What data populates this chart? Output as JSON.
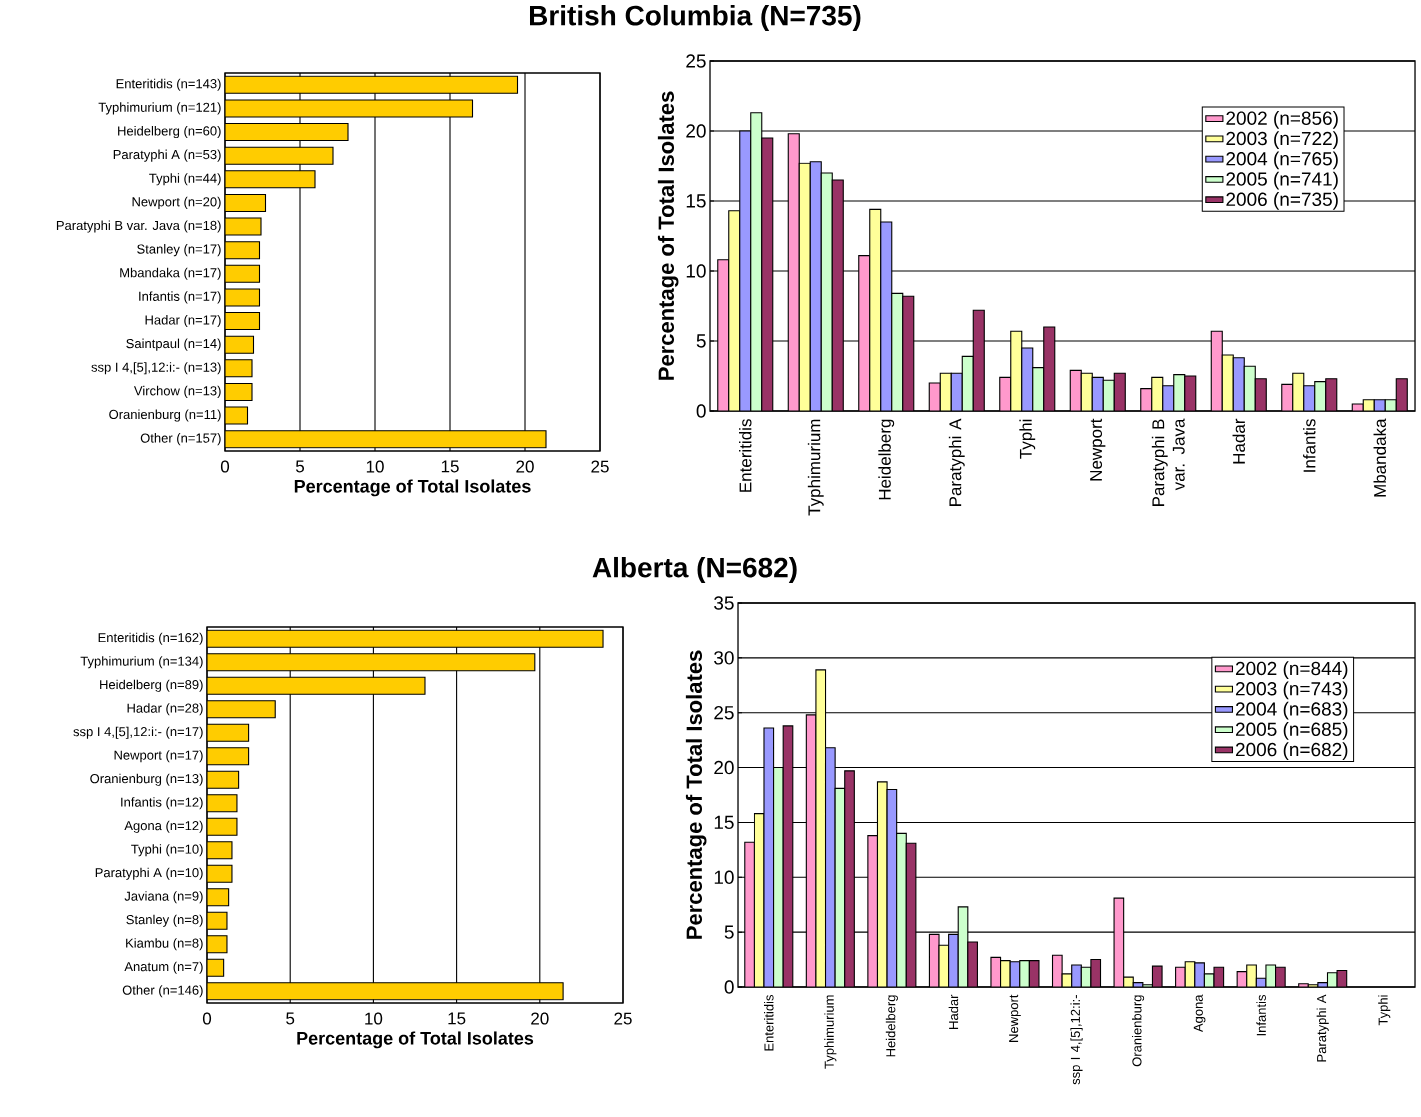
{
  "chart_data": [
    {
      "type": "bar",
      "orientation": "horizontal",
      "title": "British Columbia (N=735)",
      "xlabel": "Percentage of Total Isolates",
      "categories": [
        "Enteritidis (n=143)",
        "Typhimurium (n=121)",
        "Heidelberg (n=60)",
        "Paratyphi A (n=53)",
        "Typhi (n=44)",
        "Newport (n=20)",
        "Paratyphi B var. Java (n=18)",
        "Stanley (n=17)",
        "Mbandaka (n=17)",
        "Infantis (n=17)",
        "Hadar (n=17)",
        "Saintpaul (n=14)",
        "ssp I 4,[5],12:i:- (n=13)",
        "Virchow (n=13)",
        "Oranienburg (n=11)",
        "Other (n=157)"
      ],
      "values": [
        19.5,
        16.5,
        8.2,
        7.2,
        6.0,
        2.7,
        2.4,
        2.3,
        2.3,
        2.3,
        2.3,
        1.9,
        1.8,
        1.8,
        1.5,
        21.4
      ],
      "color": "#ffcc00",
      "xlim": [
        0,
        25
      ],
      "xticks": [
        0,
        5,
        10,
        15,
        20,
        25
      ],
      "grid": "x"
    },
    {
      "type": "bar",
      "ylabel": "Percentage of Total Isolates",
      "categories": [
        "Enteritidis",
        "Typhimurium",
        "Heidelberg",
        "Paratyphi A",
        "Typhi",
        "Newport",
        "Paratyphi B var. Java",
        "Hadar",
        "Infantis",
        "Mbandaka"
      ],
      "series": [
        {
          "name": "2002 (n=856)",
          "color": "#ff99cc",
          "values": [
            10.8,
            19.8,
            11.1,
            2.0,
            2.4,
            2.9,
            1.6,
            5.7,
            1.9,
            0.5
          ]
        },
        {
          "name": "2003 (n=722)",
          "color": "#ffff99",
          "values": [
            14.3,
            17.7,
            14.4,
            2.7,
            5.7,
            2.7,
            2.4,
            4.0,
            2.7,
            0.8
          ]
        },
        {
          "name": "2004 (n=765)",
          "color": "#9999ff",
          "values": [
            20.0,
            17.8,
            13.5,
            2.7,
            4.5,
            2.4,
            1.8,
            3.8,
            1.8,
            0.8
          ]
        },
        {
          "name": "2005 (n=741)",
          "color": "#ccffcc",
          "values": [
            21.3,
            17.0,
            8.4,
            3.9,
            3.1,
            2.2,
            2.6,
            3.2,
            2.1,
            0.8
          ]
        },
        {
          "name": "2006 (n=735)",
          "color": "#993366",
          "values": [
            19.5,
            16.5,
            8.2,
            7.2,
            6.0,
            2.7,
            2.5,
            2.3,
            2.3,
            2.3
          ]
        }
      ],
      "ylim": [
        0,
        25
      ],
      "yticks": [
        0,
        5,
        10,
        15,
        20,
        25
      ],
      "grid": "y",
      "legend": "top right"
    },
    {
      "type": "bar",
      "orientation": "horizontal",
      "title": "Alberta (N=682)",
      "xlabel": "Percentage of Total Isolates",
      "categories": [
        "Enteritidis (n=162)",
        "Typhimurium (n=134)",
        "Heidelberg (n=89)",
        "Hadar (n=28)",
        "ssp I 4,[5],12:i:- (n=17)",
        "Newport (n=17)",
        "Oranienburg (n=13)",
        "Infantis (n=12)",
        "Agona (n=12)",
        "Typhi (n=10)",
        "Paratyphi A (n=10)",
        "Javiana (n=9)",
        "Stanley (n=8)",
        "Kiambu (n=8)",
        "Anatum (n=7)",
        "Other  (n=146)"
      ],
      "values": [
        23.8,
        19.7,
        13.1,
        4.1,
        2.5,
        2.5,
        1.9,
        1.8,
        1.8,
        1.5,
        1.5,
        1.3,
        1.2,
        1.2,
        1.0,
        21.4
      ],
      "color": "#ffcc00",
      "xlim": [
        0,
        25
      ],
      "xticks": [
        0,
        5,
        10,
        15,
        20,
        25
      ],
      "grid": "x"
    },
    {
      "type": "bar",
      "ylabel": "Percentage of Total Isolates",
      "categories": [
        "Enteritidis",
        "Typhimurium",
        "Heidelberg",
        "Hadar",
        "Newport",
        "ssp I 4,[5],12:i:-",
        "Oranienburg",
        "Agona",
        "Infantis",
        "Paratyphi A",
        "Typhi"
      ],
      "series": [
        {
          "name": "2002 (n=844)",
          "color": "#ff99cc",
          "values": [
            13.2,
            24.8,
            13.8,
            4.8,
            2.7,
            2.9,
            8.1,
            1.8,
            1.4,
            0.3,
            null
          ]
        },
        {
          "name": "2003 (n=743)",
          "color": "#ffff99",
          "values": [
            15.8,
            28.9,
            18.7,
            3.8,
            2.4,
            1.2,
            0.9,
            2.3,
            2.0,
            0.2,
            null
          ]
        },
        {
          "name": "2004 (n=683)",
          "color": "#9999ff",
          "values": [
            23.6,
            21.8,
            18.0,
            4.8,
            2.3,
            2.0,
            0.4,
            2.2,
            0.8,
            0.4,
            null
          ]
        },
        {
          "name": "2005 (n=685)",
          "color": "#ccffcc",
          "values": [
            20.0,
            18.1,
            14.0,
            7.3,
            2.4,
            1.8,
            0.2,
            1.2,
            2.0,
            1.3,
            null
          ]
        },
        {
          "name": "2006 (n=682)",
          "color": "#993366",
          "values": [
            23.8,
            19.7,
            13.1,
            4.1,
            2.4,
            2.5,
            1.9,
            1.8,
            1.8,
            1.5,
            null
          ]
        }
      ],
      "ylim": [
        0,
        35
      ],
      "yticks": [
        0,
        5,
        10,
        15,
        20,
        25,
        30,
        35
      ],
      "grid": "y",
      "legend": "top right"
    }
  ]
}
